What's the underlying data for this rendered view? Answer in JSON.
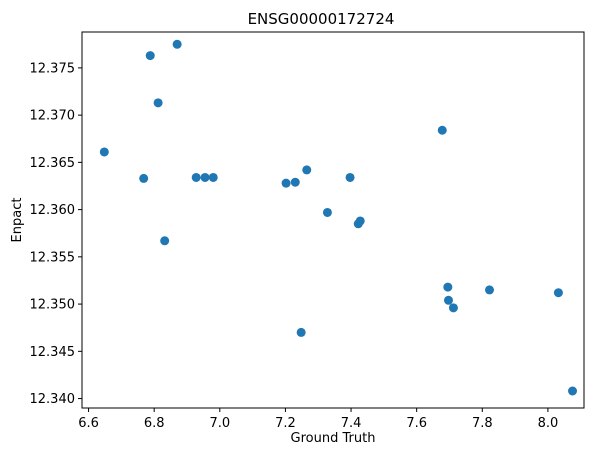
{
  "chart_data": {
    "type": "scatter",
    "title": "ENSG00000172724",
    "xlabel": "Ground Truth",
    "ylabel": "Enpact",
    "xlim": [
      6.58,
      8.11
    ],
    "ylim": [
      12.339,
      12.3788
    ],
    "xticks": [
      6.6,
      6.8,
      7.0,
      7.2,
      7.4,
      7.6,
      7.8,
      8.0
    ],
    "xtick_labels": [
      "6.6",
      "6.8",
      "7.0",
      "7.2",
      "7.4",
      "7.6",
      "7.8",
      "8.0"
    ],
    "yticks": [
      12.34,
      12.345,
      12.35,
      12.355,
      12.36,
      12.365,
      12.37,
      12.375
    ],
    "ytick_labels": [
      "12.340",
      "12.345",
      "12.350",
      "12.355",
      "12.360",
      "12.365",
      "12.370",
      "12.375"
    ],
    "grid": false,
    "color": "#1f77b4",
    "points": [
      {
        "x": 6.648,
        "y": 12.3661
      },
      {
        "x": 6.768,
        "y": 12.3633
      },
      {
        "x": 6.788,
        "y": 12.3763
      },
      {
        "x": 6.812,
        "y": 12.3713
      },
      {
        "x": 6.832,
        "y": 12.3567
      },
      {
        "x": 6.87,
        "y": 12.3775
      },
      {
        "x": 6.928,
        "y": 12.3634
      },
      {
        "x": 6.955,
        "y": 12.3634
      },
      {
        "x": 6.98,
        "y": 12.3634
      },
      {
        "x": 7.202,
        "y": 12.3628
      },
      {
        "x": 7.23,
        "y": 12.3629
      },
      {
        "x": 7.248,
        "y": 12.347
      },
      {
        "x": 7.265,
        "y": 12.3642
      },
      {
        "x": 7.328,
        "y": 12.3597
      },
      {
        "x": 7.397,
        "y": 12.3634
      },
      {
        "x": 7.422,
        "y": 12.3585
      },
      {
        "x": 7.428,
        "y": 12.3588
      },
      {
        "x": 7.678,
        "y": 12.3684
      },
      {
        "x": 7.695,
        "y": 12.3518
      },
      {
        "x": 7.697,
        "y": 12.3504
      },
      {
        "x": 7.712,
        "y": 12.3496
      },
      {
        "x": 7.822,
        "y": 12.3515
      },
      {
        "x": 8.032,
        "y": 12.3512
      },
      {
        "x": 8.075,
        "y": 12.3408
      }
    ]
  }
}
